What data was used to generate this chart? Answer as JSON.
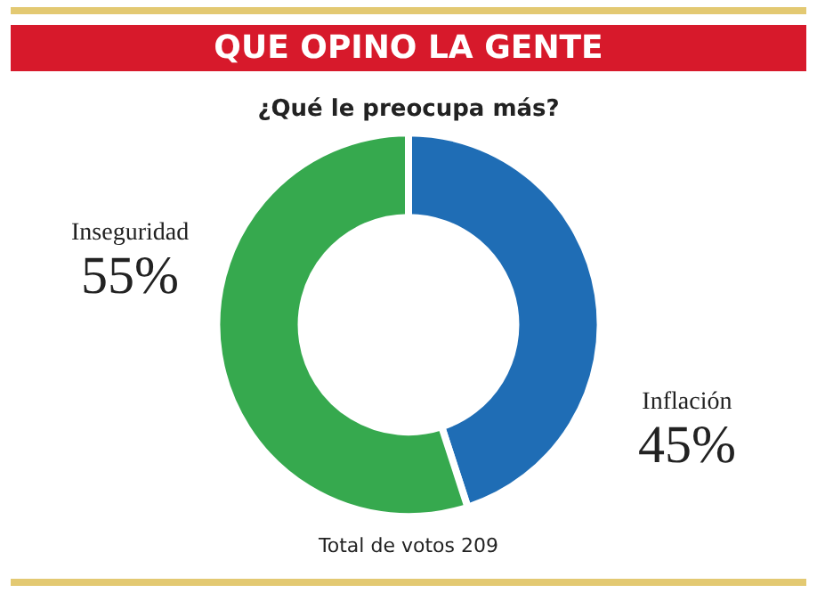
{
  "chart_data": {
    "type": "donut",
    "title": "QUE OPINO LA GENTE",
    "subtitle": "¿Qué le preocupa más?",
    "categories": [
      "Inflación",
      "Inseguridad"
    ],
    "values": [
      45,
      55
    ],
    "colors": [
      "#1f6db5",
      "#36a94e"
    ],
    "value_labels": [
      "45%",
      "55%"
    ],
    "annotations": [
      "Total de votos 209"
    ],
    "legend": false
  }
}
